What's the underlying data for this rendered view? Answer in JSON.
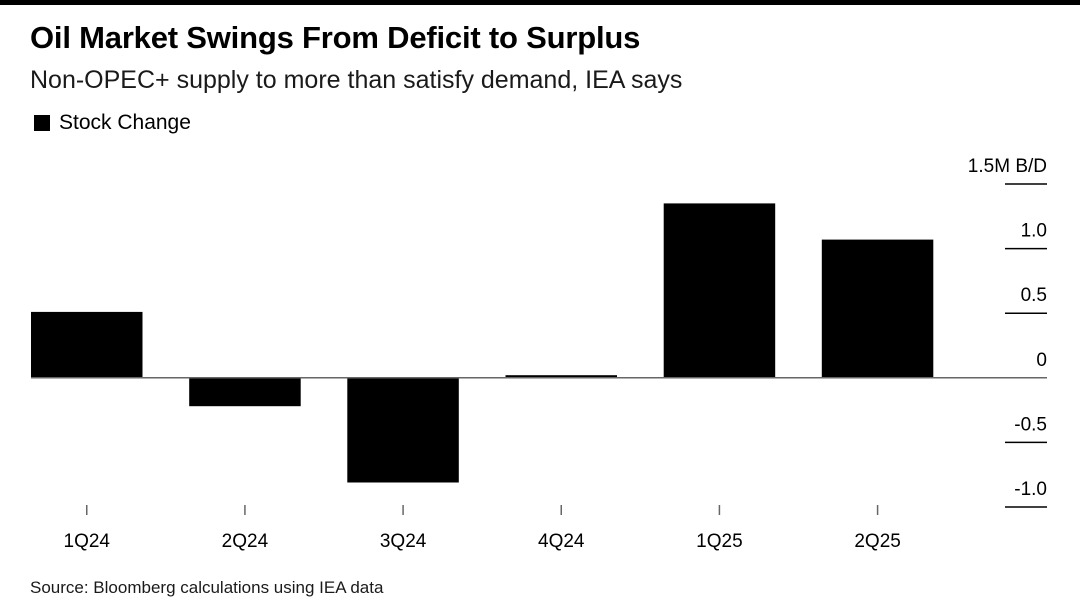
{
  "header": {
    "title": "Oil Market Swings From Deficit to Surplus",
    "subtitle": "Non-OPEC+ supply to more than satisfy demand, IEA says"
  },
  "legend": {
    "label": "Stock Change",
    "color": "#000000"
  },
  "footer": {
    "source": "Source: Bloomberg calculations using IEA data"
  },
  "chart_data": {
    "type": "bar",
    "title": "Oil Market Swings From Deficit to Surplus",
    "subtitle": "Non-OPEC+ supply to more than satisfy demand, IEA says",
    "categories": [
      "1Q24",
      "2Q24",
      "3Q24",
      "4Q24",
      "1Q25",
      "2Q25"
    ],
    "series": [
      {
        "name": "Stock Change",
        "color": "#000000",
        "values": [
          0.51,
          -0.22,
          -0.81,
          0.02,
          1.35,
          1.07
        ]
      }
    ],
    "xlabel": "",
    "ylabel": "M B/D",
    "ylim": [
      -1.0,
      1.5
    ],
    "yticks": [
      {
        "value": 1.5,
        "label": "1.5M B/D"
      },
      {
        "value": 1.0,
        "label": "1.0"
      },
      {
        "value": 0.5,
        "label": "0.5"
      },
      {
        "value": 0,
        "label": "0"
      },
      {
        "value": -0.5,
        "label": "-0.5"
      },
      {
        "value": -1.0,
        "label": "-1.0"
      }
    ],
    "grid": false,
    "legend_position": "top-left",
    "axis_position": "right"
  }
}
